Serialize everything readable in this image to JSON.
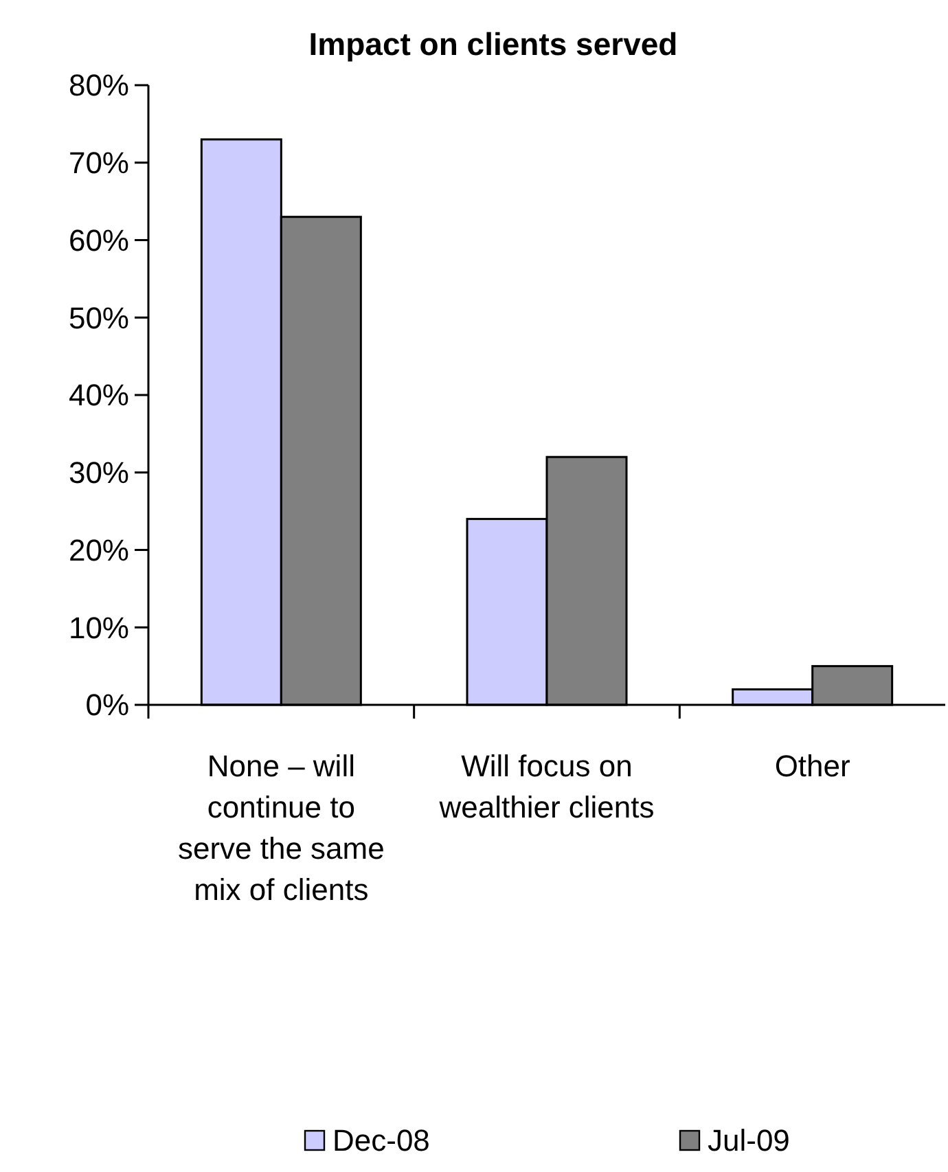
{
  "chart_data": {
    "type": "bar",
    "title": "Impact on clients served",
    "categories": [
      "None – will continue to serve the same mix of clients",
      "Will focus on wealthier clients",
      "Other"
    ],
    "series": [
      {
        "name": "Dec-08",
        "color": "#ccccff",
        "values": [
          73,
          24,
          2
        ]
      },
      {
        "name": "Jul-09",
        "color": "#808080",
        "values": [
          63,
          32,
          5
        ]
      }
    ],
    "ylim": [
      0,
      80
    ],
    "yticks": [
      {
        "value": 0,
        "label": "0%"
      },
      {
        "value": 10,
        "label": "10%"
      },
      {
        "value": 20,
        "label": "20%"
      },
      {
        "value": 30,
        "label": "30%"
      },
      {
        "value": 40,
        "label": "40%"
      },
      {
        "value": 50,
        "label": "50%"
      },
      {
        "value": 60,
        "label": "60%"
      },
      {
        "value": 70,
        "label": "70%"
      },
      {
        "value": 80,
        "label": "80%"
      }
    ],
    "grid": false,
    "legend": "bottom"
  }
}
